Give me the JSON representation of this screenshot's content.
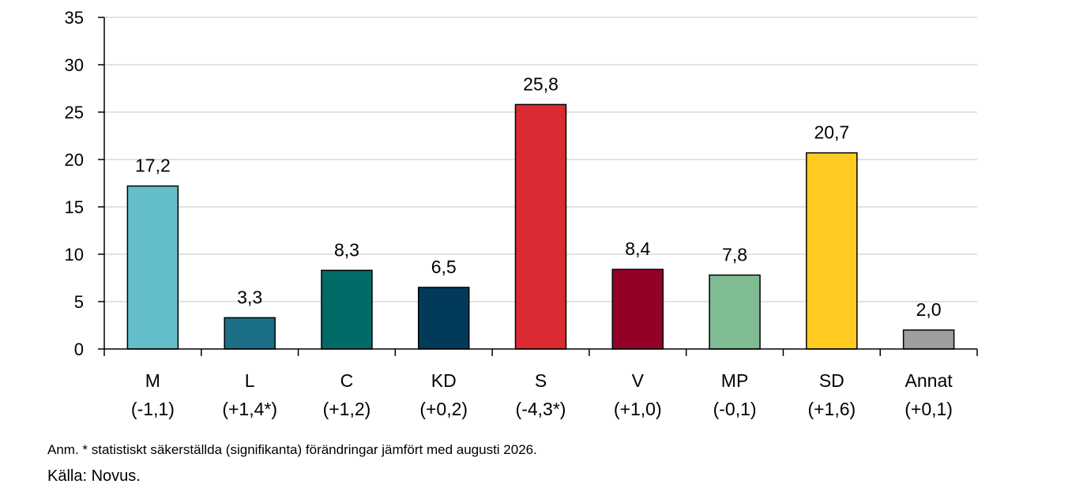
{
  "chart_data": {
    "type": "bar",
    "categories": [
      "M",
      "L",
      "C",
      "KD",
      "S",
      "V",
      "MP",
      "SD",
      "Annat"
    ],
    "changes": [
      "(-1,1)",
      "(+1,4*)",
      "(+1,2)",
      "(+0,2)",
      "(-4,3*)",
      "(+1,0)",
      "(-0,1)",
      "(+1,6)",
      "(+0,1)"
    ],
    "values": [
      17.2,
      3.3,
      8.3,
      6.5,
      25.8,
      8.4,
      7.8,
      20.7,
      2.0
    ],
    "value_labels": [
      "17,2",
      "3,3",
      "8,3",
      "6,5",
      "25,8",
      "8,4",
      "7,8",
      "20,7",
      "2,0"
    ],
    "colors": [
      "#63BECA",
      "#1B6F87",
      "#016B67",
      "#023A59",
      "#DC2A32",
      "#940127",
      "#7FBC93",
      "#FFCB21",
      "#9E9E9E"
    ],
    "ylim": [
      0,
      35
    ],
    "yticks": [
      "0",
      "5",
      "10",
      "15",
      "20",
      "25",
      "30",
      "35"
    ],
    "grid": true,
    "title": "",
    "xlabel": "",
    "ylabel": ""
  },
  "footer": {
    "note": "Anm. * statistiskt säkerställda (signifikanta) förändringar jämfört med augusti 2026.",
    "source": "Källa: Novus."
  }
}
